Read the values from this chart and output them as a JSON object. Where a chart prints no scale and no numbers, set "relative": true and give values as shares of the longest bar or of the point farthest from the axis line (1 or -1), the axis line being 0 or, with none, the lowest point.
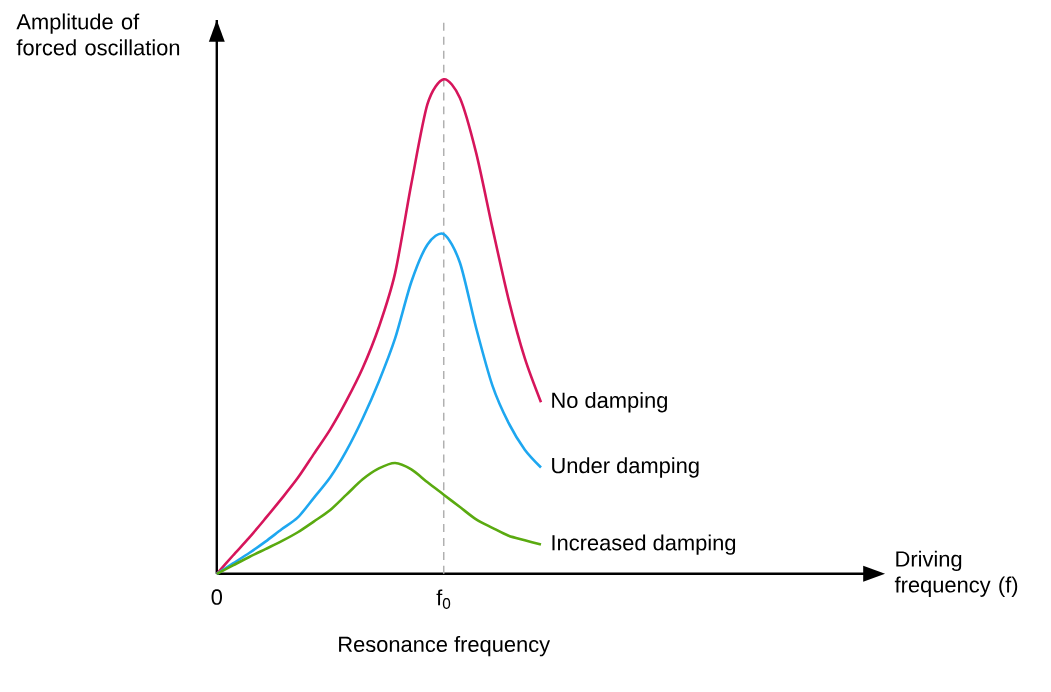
{
  "chart_data": {
    "type": "line",
    "relative": true,
    "ylabel": "Amplitude of forced oscillation",
    "categories": [
      "0",
      null,
      null,
      null,
      null,
      null,
      null,
      null,
      null,
      null,
      null,
      null,
      null,
      null,
      "f$_{0}$",
      null,
      null,
      null,
      null,
      null,
      null
    ],
    "ref_lines": [
      {
        "axis": "x",
        "value": "f$_{0}$",
        "color": "#b0b0b0",
        "line_style": "dashed"
      }
    ],
    "annotations": [
      "Resonance frequency",
      "Driving frequency (f)"
    ],
    "series": [
      {
        "name": "No damping",
        "color": "#d6155b",
        "values": [
          0,
          0.037,
          0.073,
          0.112,
          0.152,
          0.194,
          0.243,
          0.292,
          0.35,
          0.416,
          0.499,
          0.608,
          0.788,
          0.95,
          1,
          0.962,
          0.851,
          0.7,
          0.555,
          0.436,
          0.347
        ]
      },
      {
        "name": "Under damping",
        "color": "#1ea7f0",
        "values": [
          0,
          0.021,
          0.042,
          0.065,
          0.09,
          0.114,
          0.154,
          0.195,
          0.249,
          0.314,
          0.389,
          0.476,
          0.59,
          0.666,
          0.687,
          0.629,
          0.497,
          0.381,
          0.305,
          0.251,
          0.215
        ]
      },
      {
        "name": "Increased damping",
        "color": "#5aaa10",
        "values": [
          0,
          0.017,
          0.034,
          0.05,
          0.066,
          0.084,
          0.106,
          0.129,
          0.16,
          0.191,
          0.213,
          0.224,
          0.211,
          0.185,
          0.16,
          0.135,
          0.11,
          0.093,
          0.077,
          0.068,
          0.059
        ]
      }
    ]
  }
}
